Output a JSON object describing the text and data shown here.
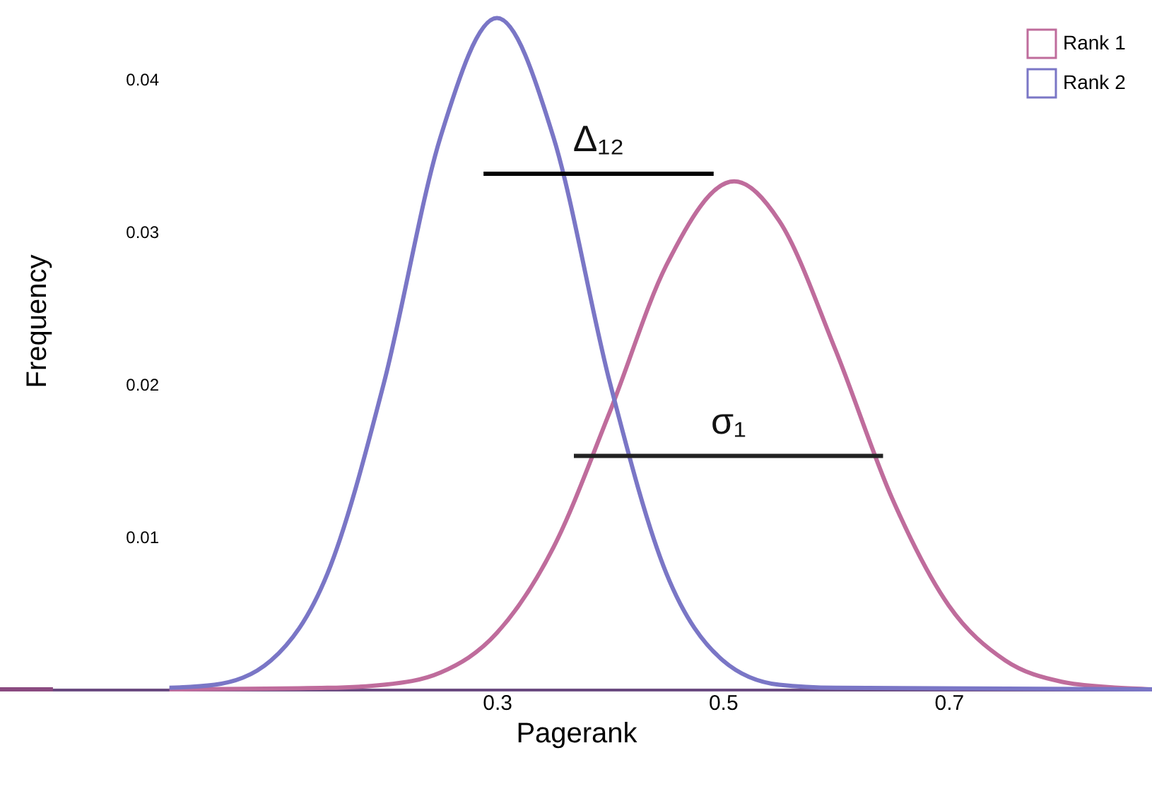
{
  "chart_data": {
    "type": "line",
    "xlabel": "Pagerank",
    "ylabel": "Frequency",
    "xlim": [
      -0.14,
      0.88
    ],
    "ylim": [
      0,
      0.045
    ],
    "xticks": [
      0.3,
      0.5,
      0.7
    ],
    "yticks": [
      0.01,
      0.02,
      0.03,
      0.04
    ],
    "grid": false,
    "legend": "top right",
    "marker": "none",
    "line_style": "solid",
    "series": [
      {
        "name": "Rank 1",
        "color": "#bf6c9c",
        "x": [
          0.01,
          0.15,
          0.2,
          0.25,
          0.3,
          0.35,
          0.4,
          0.45,
          0.51,
          0.55,
          0.6,
          0.65,
          0.7,
          0.75,
          0.8,
          0.85,
          0.88
        ],
        "values": [
          0,
          0.0001,
          0.0003,
          0.0011,
          0.0037,
          0.0093,
          0.0182,
          0.0278,
          0.0333,
          0.0307,
          0.0222,
          0.0125,
          0.0055,
          0.0019,
          0.0005,
          0.0001,
          0
        ]
      },
      {
        "name": "Rank 2",
        "color": "#7a76c6",
        "x": [
          0.01,
          0.05,
          0.1,
          0.15,
          0.2,
          0.25,
          0.3,
          0.35,
          0.4,
          0.45,
          0.5,
          0.55,
          0.6,
          0.88
        ],
        "values": [
          0.0001,
          0.0003,
          0.0019,
          0.0076,
          0.0201,
          0.0362,
          0.044,
          0.0362,
          0.0201,
          0.0076,
          0.0019,
          0.0003,
          0.0001,
          0
        ]
      },
      {
        "type": "line",
        "color": "#8a4a80",
        "x": [
          -0.14,
          -0.095
        ],
        "values": [
          0,
          0
        ]
      },
      {
        "type": "line",
        "color": "#000000",
        "x": [
          0.29,
          0.49
        ],
        "values": [
          0.0338,
          0.0338
        ]
      },
      {
        "type": "line",
        "color": "#222222",
        "x": [
          0.37,
          0.64
        ],
        "values": [
          0.0153,
          0.0153
        ]
      }
    ],
    "annotations": [
      "Δ₁₂",
      "σ₁"
    ]
  }
}
